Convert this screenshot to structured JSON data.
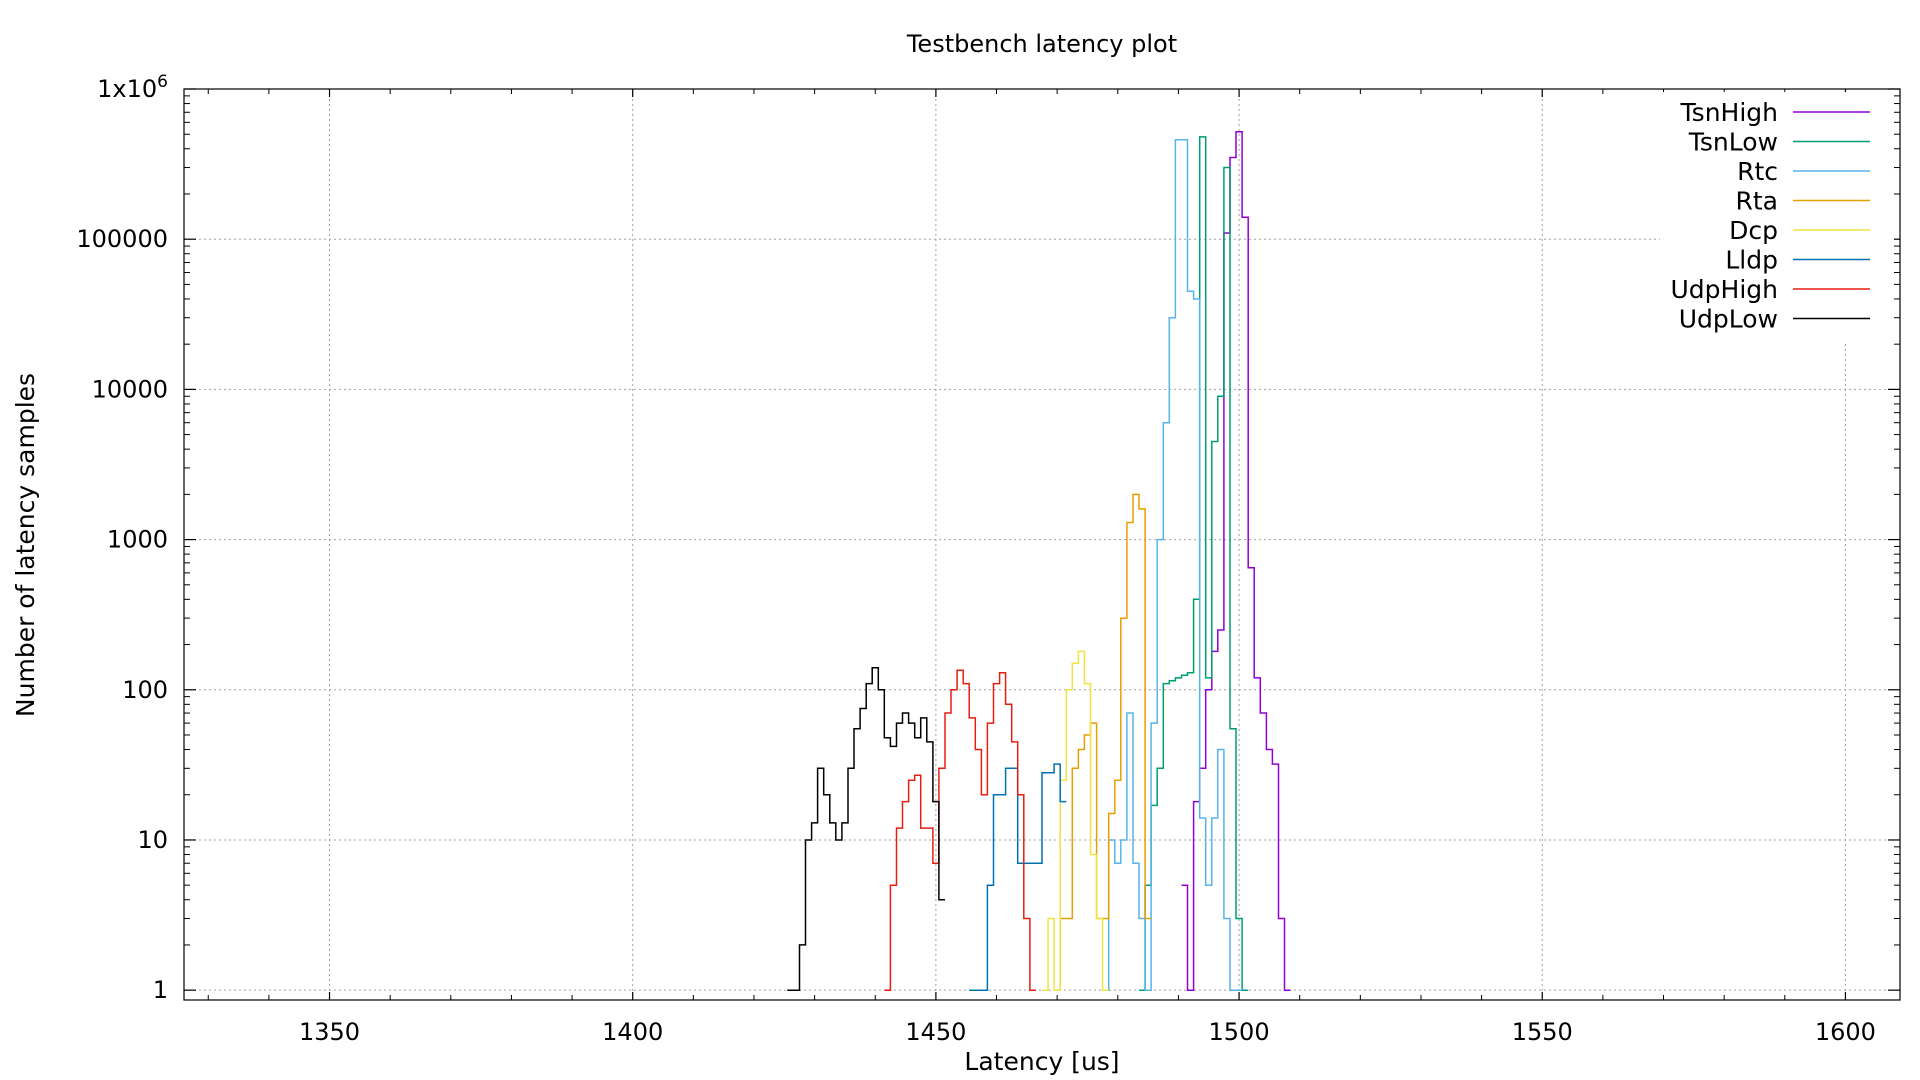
{
  "chart_data": {
    "type": "line",
    "title": "Testbench latency plot",
    "xlabel": "Latency [us]",
    "ylabel": "Number of latency samples",
    "xlim": [
      1326,
      1609
    ],
    "ylim": [
      0.86,
      1000000
    ],
    "yscale": "log",
    "grid": true,
    "legend_position": "top-right",
    "xticks": [
      1350,
      1400,
      1450,
      1500,
      1550,
      1600
    ],
    "xtick_labels": [
      "1350",
      "1400",
      "1450",
      "1500",
      "1550",
      "1600"
    ],
    "yticks": [
      1,
      10,
      100,
      1000,
      10000,
      100000,
      1000000
    ],
    "ytick_labels": [
      "1",
      "10",
      "100",
      "1000",
      "10000",
      "100000",
      "1x10^6"
    ],
    "series": [
      {
        "name": "TsnHigh",
        "color": "#9400d3",
        "step": "mid",
        "x": [
          1491,
          1492,
          1493,
          1494,
          1495,
          1496,
          1497,
          1498,
          1499,
          1500,
          1501,
          1502,
          1503,
          1504,
          1505,
          1506,
          1507,
          1508
        ],
        "y": [
          5,
          1,
          18,
          30,
          100,
          180,
          250,
          110000,
          350000,
          520000,
          140000,
          650,
          120,
          70,
          40,
          32,
          3,
          1
        ]
      },
      {
        "name": "TsnLow",
        "color": "#009e73",
        "step": "mid",
        "x": [
          1484,
          1485,
          1486,
          1487,
          1488,
          1489,
          1490,
          1491,
          1492,
          1493,
          1494,
          1495,
          1496,
          1497,
          1498,
          1499,
          1500,
          1501
        ],
        "y": [
          1,
          5,
          17,
          30,
          110,
          115,
          120,
          125,
          130,
          400,
          480000,
          120,
          4500,
          9000,
          300000,
          55,
          3,
          1
        ],
        "note_y": ""
      },
      {
        "name": "Rtc",
        "color": "#56b4e9",
        "step": "mid",
        "x": [
          1478,
          1479,
          1480,
          1481,
          1482,
          1483,
          1484,
          1485,
          1486,
          1487,
          1488,
          1489,
          1490,
          1491,
          1492,
          1493,
          1494,
          1495,
          1496,
          1497,
          1498,
          1499,
          1500
        ],
        "y": [
          1,
          10,
          7,
          10,
          70,
          7,
          3,
          1,
          60,
          1000,
          6000,
          30000,
          460000,
          460000,
          45000,
          40000,
          14,
          5,
          14,
          40,
          3,
          1,
          1
        ]
      },
      {
        "name": "Rta",
        "color": "#e69f00",
        "step": "mid",
        "x": [
          1470,
          1471,
          1472,
          1473,
          1474,
          1475,
          1476,
          1477,
          1478,
          1479,
          1480,
          1481,
          1482,
          1483,
          1484,
          1485
        ],
        "y": [
          1,
          3,
          3,
          30,
          40,
          50,
          60,
          3,
          3,
          15,
          25,
          300,
          1300,
          2000,
          1600,
          3
        ]
      },
      {
        "name": "Dcp",
        "color": "#f0e442",
        "step": "mid",
        "x": [
          1468,
          1469,
          1470,
          1471,
          1472,
          1473,
          1474,
          1475,
          1476,
          1477,
          1478
        ],
        "y": [
          1,
          3,
          1,
          25,
          100,
          150,
          180,
          110,
          8,
          3,
          1
        ]
      },
      {
        "name": "Lldp",
        "color": "#0072b2",
        "step": "mid",
        "x": [
          1456,
          1457,
          1458,
          1459,
          1460,
          1461,
          1462,
          1463,
          1464,
          1465,
          1466,
          1467,
          1468,
          1469,
          1470,
          1471
        ],
        "y": [
          1,
          1,
          1,
          5,
          20,
          20,
          30,
          30,
          7,
          7,
          7,
          7,
          28,
          28,
          32,
          18
        ]
      },
      {
        "name": "UdpHigh",
        "color": "#e51e10",
        "step": "mid",
        "x": [
          1442,
          1443,
          1444,
          1445,
          1446,
          1447,
          1448,
          1449,
          1450,
          1451,
          1452,
          1453,
          1454,
          1455,
          1456,
          1457,
          1458,
          1459,
          1460,
          1461,
          1462,
          1463,
          1464,
          1465,
          1466
        ],
        "y": [
          1,
          5,
          12,
          18,
          25,
          27,
          12,
          12,
          7,
          30,
          70,
          100,
          135,
          110,
          65,
          40,
          20,
          60,
          110,
          130,
          80,
          45,
          20,
          3,
          1
        ]
      },
      {
        "name": "UdpLow",
        "color": "#000000",
        "step": "mid",
        "x": [
          1426,
          1427,
          1428,
          1429,
          1430,
          1431,
          1432,
          1433,
          1434,
          1435,
          1436,
          1437,
          1438,
          1439,
          1440,
          1441,
          1442,
          1443,
          1444,
          1445,
          1446,
          1447,
          1448,
          1449,
          1450,
          1451
        ],
        "y": [
          1,
          1,
          2,
          10,
          13,
          30,
          20,
          13,
          10,
          13,
          30,
          55,
          75,
          110,
          140,
          100,
          48,
          42,
          60,
          70,
          60,
          48,
          65,
          45,
          18,
          4
        ]
      }
    ]
  }
}
